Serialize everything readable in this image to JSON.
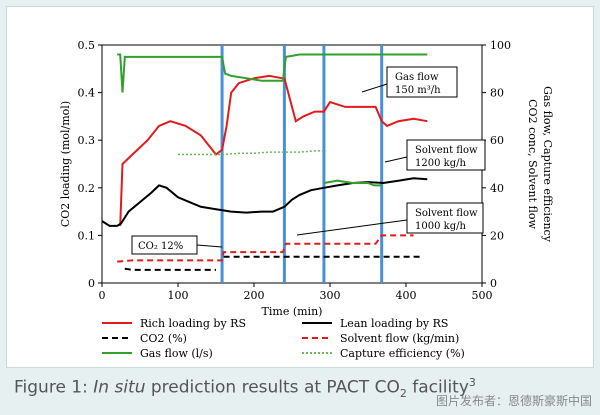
{
  "caption": {
    "prefix": "Figure 1: ",
    "italic": "In situ",
    "rest": " prediction results at PACT CO",
    "sub": "2",
    "tail": " facility",
    "sup": "3"
  },
  "watermark": "图片发布者：恩德斯豪斯中国",
  "chart_data": {
    "type": "line",
    "xlabel": "Time (min)",
    "ylabel_left": "CO2 loading (mol/mol)",
    "ylabel_right": "CO2 conc, Solvent flow, Gas flow, Capture efficiency",
    "xlim": [
      0,
      500
    ],
    "ylim_left": [
      0,
      0.5
    ],
    "ylim_right": [
      0,
      100
    ],
    "x_ticks": [
      "0",
      "100",
      "200",
      "300",
      "400",
      "500"
    ],
    "y_left_ticks": [
      "0",
      "0.1",
      "0.2",
      "0.3",
      "0.4",
      "0.5"
    ],
    "y_right_ticks": [
      "0",
      "20",
      "40",
      "60",
      "80",
      "100"
    ],
    "grid": false,
    "legend_position": "bottom",
    "step_lines_x": [
      158,
      240,
      292,
      368
    ],
    "series": [
      {
        "name": "Rich loading by RS",
        "axis": "left",
        "color": "#e31a1c",
        "style": "solid",
        "x": [
          0,
          20,
          24,
          27,
          40,
          60,
          75,
          90,
          110,
          130,
          150,
          158,
          164,
          170,
          180,
          200,
          220,
          238,
          240,
          245,
          255,
          265,
          280,
          292,
          300,
          320,
          340,
          360,
          368,
          375,
          390,
          410,
          428
        ],
        "y": [
          null,
          null,
          0.12,
          0.25,
          0.27,
          0.3,
          0.33,
          0.34,
          0.33,
          0.31,
          0.27,
          0.28,
          0.33,
          0.4,
          0.42,
          0.43,
          0.435,
          0.43,
          0.43,
          0.4,
          0.34,
          0.35,
          0.36,
          0.36,
          0.38,
          0.37,
          0.37,
          0.37,
          0.34,
          0.33,
          0.34,
          0.345,
          0.34
        ]
      },
      {
        "name": "Lean loading by RS",
        "axis": "left",
        "color": "#000000",
        "style": "solid",
        "x": [
          0,
          10,
          20,
          25,
          35,
          50,
          65,
          75,
          85,
          100,
          115,
          130,
          150,
          170,
          190,
          210,
          225,
          240,
          250,
          260,
          275,
          292,
          310,
          330,
          350,
          370,
          390,
          410,
          428
        ],
        "y": [
          0.13,
          0.12,
          0.12,
          0.125,
          0.15,
          0.17,
          0.19,
          0.205,
          0.2,
          0.18,
          0.17,
          0.16,
          0.155,
          0.15,
          0.148,
          0.15,
          0.15,
          0.16,
          0.175,
          0.185,
          0.195,
          0.2,
          0.205,
          0.21,
          0.212,
          0.21,
          0.215,
          0.22,
          0.218
        ]
      },
      {
        "name": "CO2 (%)",
        "axis": "right",
        "color": "#000000",
        "style": "dashed",
        "x": [
          25,
          30,
          40,
          60,
          80,
          100,
          120,
          150
        ],
        "y": [
          null,
          6,
          5.5,
          5.5,
          5.5,
          5.5,
          5.5,
          5.5
        ]
      },
      {
        "name": "CO2 (%) after",
        "axis": "right",
        "color": "#000000",
        "style": "dashed",
        "x": [
          160,
          180,
          200,
          220,
          240,
          260,
          280,
          300,
          320,
          340,
          360,
          380,
          400,
          420
        ],
        "y": [
          11,
          11,
          11,
          11,
          11,
          11,
          11,
          11,
          11,
          11,
          11,
          11,
          11,
          11
        ]
      },
      {
        "name": "Solvent flow (kg/min)",
        "axis": "right",
        "color": "#e31a1c",
        "style": "dashed",
        "x": [
          20,
          40,
          60,
          80,
          100,
          120,
          140,
          158,
          160,
          180,
          200,
          220,
          238,
          242,
          260,
          280,
          300,
          320,
          340,
          360,
          368,
          372,
          390,
          410
        ],
        "y": [
          9,
          9.5,
          9.5,
          9.5,
          9.5,
          9.5,
          9.5,
          9.5,
          13,
          13,
          13,
          13,
          13,
          16.5,
          16.5,
          16.5,
          16.5,
          16.5,
          16.5,
          16.5,
          20,
          20,
          20,
          20
        ]
      },
      {
        "name": "Gas flow (l/s)",
        "axis": "right",
        "color": "#33a02c",
        "style": "solid",
        "x": [
          20,
          24,
          27,
          30,
          40,
          60,
          80,
          100,
          120,
          140,
          158,
          162,
          170,
          190,
          210,
          230,
          238,
          242,
          260,
          280,
          300,
          330,
          360,
          368,
          372,
          400,
          428
        ],
        "y": [
          96,
          96,
          80,
          95,
          95,
          95,
          95,
          95,
          95,
          95,
          95,
          88,
          87,
          86,
          85,
          85,
          85,
          95,
          96,
          96,
          96,
          96,
          96,
          96,
          96,
          96,
          96
        ]
      },
      {
        "name": "Capture efficiency (%)",
        "axis": "right",
        "color": "#66bb55",
        "style": "dotted",
        "x": [
          100,
          130,
          158,
          180,
          200,
          220,
          240,
          260,
          280,
          295
        ],
        "y": [
          54,
          54,
          54,
          54.5,
          54.5,
          55,
          55,
          55,
          55.5,
          55.5
        ]
      },
      {
        "name": "Gas flow seg",
        "axis": "right",
        "color": "#33a02c",
        "style": "solid",
        "x": [
          292,
          310,
          330,
          350,
          358,
          368
        ],
        "y": [
          42,
          43,
          42,
          42,
          41,
          41
        ]
      }
    ],
    "legend": [
      {
        "label": "Rich loading by RS",
        "color": "#e31a1c",
        "style": "solid"
      },
      {
        "label": "Lean loading by RS",
        "color": "#000000",
        "style": "solid"
      },
      {
        "label": "CO2 (%)",
        "color": "#000000",
        "style": "dashed"
      },
      {
        "label": "Solvent flow (kg/min)",
        "color": "#e31a1c",
        "style": "dashed"
      },
      {
        "label": "Gas flow (l/s)",
        "color": "#33a02c",
        "style": "solid"
      },
      {
        "label": "Capture efficiency (%)",
        "color": "#66bb55",
        "style": "dotted"
      }
    ],
    "annotations": [
      {
        "line1": "Gas flow",
        "line2": "150 m³/h"
      },
      {
        "line1": "Solvent flow",
        "line2": "1200 kg/h"
      },
      {
        "line1": "Solvent flow",
        "line2": "1000 kg/h"
      },
      {
        "line1": "CO₂ 12%",
        "line2": ""
      }
    ]
  }
}
